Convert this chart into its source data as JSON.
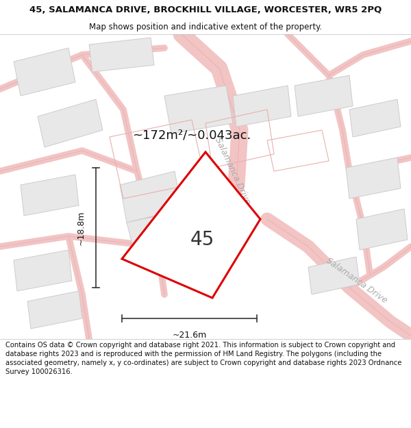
{
  "title_line1": "45, SALAMANCA DRIVE, BROCKHILL VILLAGE, WORCESTER, WR5 2PQ",
  "title_line2": "Map shows position and indicative extent of the property.",
  "footer_text": "Contains OS data © Crown copyright and database right 2021. This information is subject to Crown copyright and database rights 2023 and is reproduced with the permission of HM Land Registry. The polygons (including the associated geometry, namely x, y co-ordinates) are subject to Crown copyright and database rights 2023 Ordnance Survey 100026316.",
  "map_bg_color": "#f5f5f5",
  "page_bg_color": "#ffffff",
  "road_color": "#f2c4c4",
  "road_color2": "#e8b0b0",
  "building_fill": "#e8e8e8",
  "building_edge": "#cccccc",
  "plot_fill": "#ffffff",
  "plot_edge_color": "#dd0000",
  "plot_edge_width": 2.2,
  "area_text": "~172m²/~0.043ac.",
  "plot_number": "45",
  "dim_width": "~21.6m",
  "dim_height": "~18.8m",
  "street_label1": "Salamanca Drive",
  "street_label2": "Salamanca Drive",
  "title_fontsize": 9.5,
  "subtitle_fontsize": 8.5,
  "footer_fontsize": 7.2,
  "area_fontsize": 13,
  "number_fontsize": 20,
  "dim_fontsize": 9,
  "street_fontsize": 9
}
